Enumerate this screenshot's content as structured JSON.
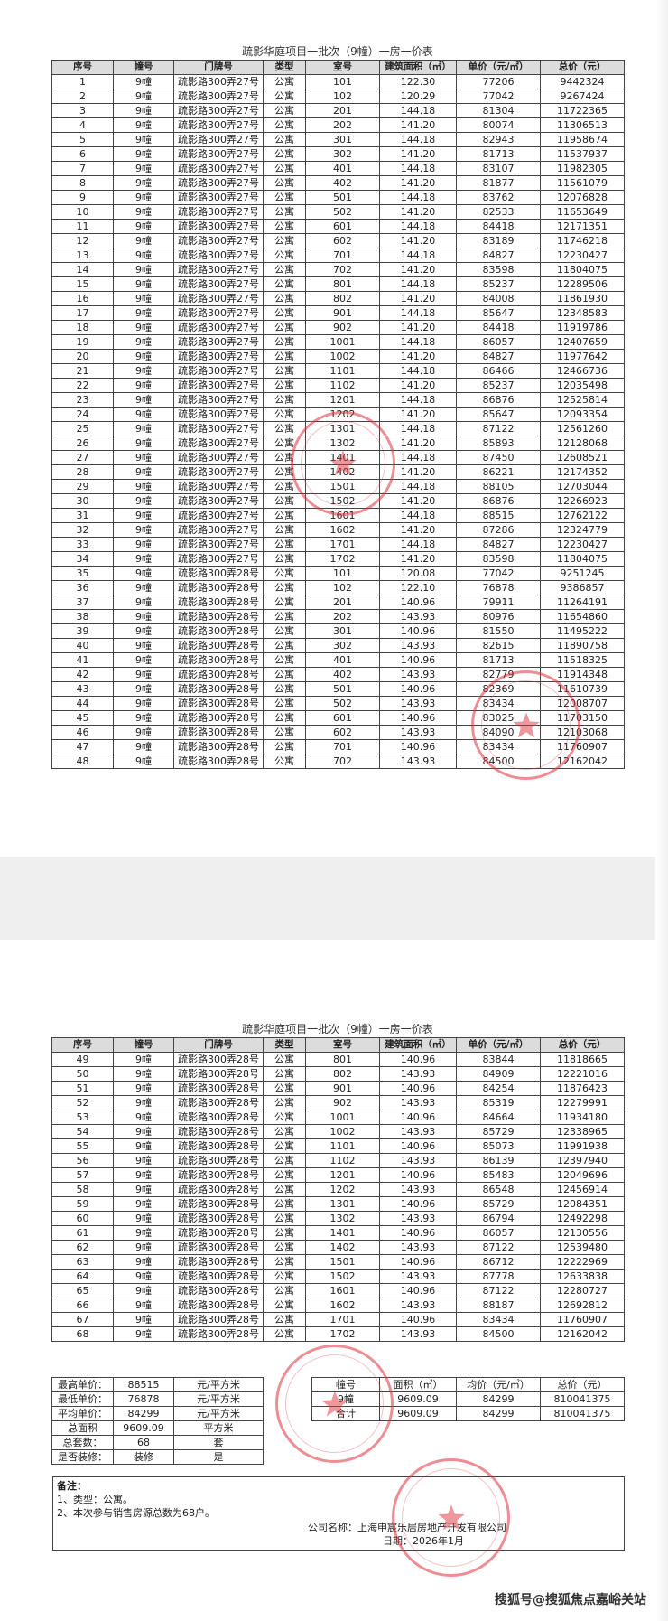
{
  "title": "疏影华庭项目一批次（9幢）一房一价表",
  "headers": [
    "序号",
    "幢号",
    "门牌号",
    "类型",
    "室号",
    "建筑面积（㎡）",
    "单价（元/㎡）",
    "总价（元）"
  ],
  "page1_rows": [
    [
      "1",
      "9幢",
      "疏影路300弄27号",
      "公寓",
      "101",
      "122.30",
      "77206",
      "9442324"
    ],
    [
      "2",
      "9幢",
      "疏影路300弄27号",
      "公寓",
      "102",
      "120.29",
      "77042",
      "9267424"
    ],
    [
      "3",
      "9幢",
      "疏影路300弄27号",
      "公寓",
      "201",
      "144.18",
      "81304",
      "11722365"
    ],
    [
      "4",
      "9幢",
      "疏影路300弄27号",
      "公寓",
      "202",
      "141.20",
      "80074",
      "11306513"
    ],
    [
      "5",
      "9幢",
      "疏影路300弄27号",
      "公寓",
      "301",
      "144.18",
      "82943",
      "11958674"
    ],
    [
      "6",
      "9幢",
      "疏影路300弄27号",
      "公寓",
      "302",
      "141.20",
      "81713",
      "11537937"
    ],
    [
      "7",
      "9幢",
      "疏影路300弄27号",
      "公寓",
      "401",
      "144.18",
      "83107",
      "11982305"
    ],
    [
      "8",
      "9幢",
      "疏影路300弄27号",
      "公寓",
      "402",
      "141.20",
      "81877",
      "11561079"
    ],
    [
      "9",
      "9幢",
      "疏影路300弄27号",
      "公寓",
      "501",
      "144.18",
      "83762",
      "12076828"
    ],
    [
      "10",
      "9幢",
      "疏影路300弄27号",
      "公寓",
      "502",
      "141.20",
      "82533",
      "11653649"
    ],
    [
      "11",
      "9幢",
      "疏影路300弄27号",
      "公寓",
      "601",
      "144.18",
      "84418",
      "12171351"
    ],
    [
      "12",
      "9幢",
      "疏影路300弄27号",
      "公寓",
      "602",
      "141.20",
      "83189",
      "11746218"
    ],
    [
      "13",
      "9幢",
      "疏影路300弄27号",
      "公寓",
      "701",
      "144.18",
      "84827",
      "12230427"
    ],
    [
      "14",
      "9幢",
      "疏影路300弄27号",
      "公寓",
      "702",
      "141.20",
      "83598",
      "11804075"
    ],
    [
      "15",
      "9幢",
      "疏影路300弄27号",
      "公寓",
      "801",
      "144.18",
      "85237",
      "12289506"
    ],
    [
      "16",
      "9幢",
      "疏影路300弄27号",
      "公寓",
      "802",
      "141.20",
      "84008",
      "11861930"
    ],
    [
      "17",
      "9幢",
      "疏影路300弄27号",
      "公寓",
      "901",
      "144.18",
      "85647",
      "12348583"
    ],
    [
      "18",
      "9幢",
      "疏影路300弄27号",
      "公寓",
      "902",
      "141.20",
      "84418",
      "11919786"
    ],
    [
      "19",
      "9幢",
      "疏影路300弄27号",
      "公寓",
      "1001",
      "144.18",
      "86057",
      "12407659"
    ],
    [
      "20",
      "9幢",
      "疏影路300弄27号",
      "公寓",
      "1002",
      "141.20",
      "84827",
      "11977642"
    ],
    [
      "21",
      "9幢",
      "疏影路300弄27号",
      "公寓",
      "1101",
      "144.18",
      "86466",
      "12466736"
    ],
    [
      "22",
      "9幢",
      "疏影路300弄27号",
      "公寓",
      "1102",
      "141.20",
      "85237",
      "12035498"
    ],
    [
      "23",
      "9幢",
      "疏影路300弄27号",
      "公寓",
      "1201",
      "144.18",
      "86876",
      "12525814"
    ],
    [
      "24",
      "9幢",
      "疏影路300弄27号",
      "公寓",
      "1202",
      "141.20",
      "85647",
      "12093354"
    ],
    [
      "25",
      "9幢",
      "疏影路300弄27号",
      "公寓",
      "1301",
      "144.18",
      "87122",
      "12561260"
    ],
    [
      "26",
      "9幢",
      "疏影路300弄27号",
      "公寓",
      "1302",
      "141.20",
      "85893",
      "12128068"
    ],
    [
      "27",
      "9幢",
      "疏影路300弄27号",
      "公寓",
      "1401",
      "144.18",
      "87450",
      "12608521"
    ],
    [
      "28",
      "9幢",
      "疏影路300弄27号",
      "公寓",
      "1402",
      "141.20",
      "86221",
      "12174352"
    ],
    [
      "29",
      "9幢",
      "疏影路300弄27号",
      "公寓",
      "1501",
      "144.18",
      "88105",
      "12703044"
    ],
    [
      "30",
      "9幢",
      "疏影路300弄27号",
      "公寓",
      "1502",
      "141.20",
      "86876",
      "12266923"
    ],
    [
      "31",
      "9幢",
      "疏影路300弄27号",
      "公寓",
      "1601",
      "144.18",
      "88515",
      "12762122"
    ],
    [
      "32",
      "9幢",
      "疏影路300弄27号",
      "公寓",
      "1602",
      "141.20",
      "87286",
      "12324779"
    ],
    [
      "33",
      "9幢",
      "疏影路300弄27号",
      "公寓",
      "1701",
      "144.18",
      "84827",
      "12230427"
    ],
    [
      "34",
      "9幢",
      "疏影路300弄27号",
      "公寓",
      "1702",
      "141.20",
      "83598",
      "11804075"
    ],
    [
      "35",
      "9幢",
      "疏影路300弄28号",
      "公寓",
      "101",
      "120.08",
      "77042",
      "9251245"
    ],
    [
      "36",
      "9幢",
      "疏影路300弄28号",
      "公寓",
      "102",
      "122.10",
      "76878",
      "9386857"
    ],
    [
      "37",
      "9幢",
      "疏影路300弄28号",
      "公寓",
      "201",
      "140.96",
      "79911",
      "11264191"
    ],
    [
      "38",
      "9幢",
      "疏影路300弄28号",
      "公寓",
      "202",
      "143.93",
      "80976",
      "11654860"
    ],
    [
      "39",
      "9幢",
      "疏影路300弄28号",
      "公寓",
      "301",
      "140.96",
      "81550",
      "11495222"
    ],
    [
      "40",
      "9幢",
      "疏影路300弄28号",
      "公寓",
      "302",
      "143.93",
      "82615",
      "11890758"
    ],
    [
      "41",
      "9幢",
      "疏影路300弄28号",
      "公寓",
      "401",
      "140.96",
      "81713",
      "11518325"
    ],
    [
      "42",
      "9幢",
      "疏影路300弄28号",
      "公寓",
      "402",
      "143.93",
      "82779",
      "11914348"
    ],
    [
      "43",
      "9幢",
      "疏影路300弄28号",
      "公寓",
      "501",
      "140.96",
      "82369",
      "11610739"
    ],
    [
      "44",
      "9幢",
      "疏影路300弄28号",
      "公寓",
      "502",
      "143.93",
      "83434",
      "12008707"
    ],
    [
      "45",
      "9幢",
      "疏影路300弄28号",
      "公寓",
      "601",
      "140.96",
      "83025",
      "11703150"
    ],
    [
      "46",
      "9幢",
      "疏影路300弄28号",
      "公寓",
      "602",
      "143.93",
      "84090",
      "12103068"
    ],
    [
      "47",
      "9幢",
      "疏影路300弄28号",
      "公寓",
      "701",
      "140.96",
      "83434",
      "11760907"
    ],
    [
      "48",
      "9幢",
      "疏影路300弄28号",
      "公寓",
      "702",
      "143.93",
      "84500",
      "12162042"
    ]
  ],
  "page2_rows": [
    [
      "49",
      "9幢",
      "疏影路300弄28号",
      "公寓",
      "801",
      "140.96",
      "83844",
      "11818665"
    ],
    [
      "50",
      "9幢",
      "疏影路300弄28号",
      "公寓",
      "802",
      "143.93",
      "84909",
      "12221016"
    ],
    [
      "51",
      "9幢",
      "疏影路300弄28号",
      "公寓",
      "901",
      "140.96",
      "84254",
      "11876423"
    ],
    [
      "52",
      "9幢",
      "疏影路300弄28号",
      "公寓",
      "902",
      "143.93",
      "85319",
      "12279991"
    ],
    [
      "53",
      "9幢",
      "疏影路300弄28号",
      "公寓",
      "1001",
      "140.96",
      "84664",
      "11934180"
    ],
    [
      "54",
      "9幢",
      "疏影路300弄28号",
      "公寓",
      "1002",
      "143.93",
      "85729",
      "12338965"
    ],
    [
      "55",
      "9幢",
      "疏影路300弄28号",
      "公寓",
      "1101",
      "140.96",
      "85073",
      "11991938"
    ],
    [
      "56",
      "9幢",
      "疏影路300弄28号",
      "公寓",
      "1102",
      "143.93",
      "86139",
      "12397940"
    ],
    [
      "57",
      "9幢",
      "疏影路300弄28号",
      "公寓",
      "1201",
      "140.96",
      "85483",
      "12049696"
    ],
    [
      "58",
      "9幢",
      "疏影路300弄28号",
      "公寓",
      "1202",
      "143.93",
      "86548",
      "12456914"
    ],
    [
      "59",
      "9幢",
      "疏影路300弄28号",
      "公寓",
      "1301",
      "140.96",
      "85729",
      "12084351"
    ],
    [
      "60",
      "9幢",
      "疏影路300弄28号",
      "公寓",
      "1302",
      "143.93",
      "86794",
      "12492298"
    ],
    [
      "61",
      "9幢",
      "疏影路300弄28号",
      "公寓",
      "1401",
      "140.96",
      "86057",
      "12130556"
    ],
    [
      "62",
      "9幢",
      "疏影路300弄28号",
      "公寓",
      "1402",
      "143.93",
      "87122",
      "12539480"
    ],
    [
      "63",
      "9幢",
      "疏影路300弄28号",
      "公寓",
      "1501",
      "140.96",
      "86712",
      "12222969"
    ],
    [
      "64",
      "9幢",
      "疏影路300弄28号",
      "公寓",
      "1502",
      "143.93",
      "87778",
      "12633838"
    ],
    [
      "65",
      "9幢",
      "疏影路300弄28号",
      "公寓",
      "1601",
      "140.96",
      "87122",
      "12280727"
    ],
    [
      "66",
      "9幢",
      "疏影路300弄28号",
      "公寓",
      "1602",
      "143.93",
      "88187",
      "12692812"
    ],
    [
      "67",
      "9幢",
      "疏影路300弄28号",
      "公寓",
      "1701",
      "140.96",
      "83434",
      "11760907"
    ],
    [
      "68",
      "9幢",
      "疏影路300弄28号",
      "公寓",
      "1702",
      "143.93",
      "84500",
      "12162042"
    ]
  ],
  "summary_left": [
    [
      "最高单价：",
      "88515",
      "元/平方米"
    ],
    [
      "最低单价：",
      "76878",
      "元/平方米"
    ],
    [
      "平均单价：",
      "84299",
      "元/平方米"
    ],
    [
      "总面积",
      "9609.09",
      "平方米"
    ],
    [
      "总套数：",
      "68",
      "套"
    ],
    [
      "是否装修：",
      "装修",
      "是"
    ]
  ],
  "summary_right": {
    "headers": [
      "幢号",
      "面积（㎡）",
      "均价（元/㎡）",
      "总价（元）"
    ],
    "rows": [
      [
        "9幢",
        "9609.09",
        "84299",
        "810041375"
      ],
      [
        "合计",
        "9609.09",
        "84299",
        "810041375"
      ]
    ]
  },
  "notes": {
    "heading": "备注：",
    "items": [
      "1、类型：公寓。",
      "2、本次参与销售房源总数为68户。"
    ],
    "company": "公司名称：上海申宸乐居房地产开发有限公司",
    "date": "日期：2026年1月"
  },
  "stamps": {
    "color": "#dc323c",
    "authority": "上海市闵行区住房保障和房屋管理局",
    "developer": "上海申宸乐居房地产开发有限公司"
  },
  "watermark": "搜狐号@搜狐焦点嘉峪关站"
}
